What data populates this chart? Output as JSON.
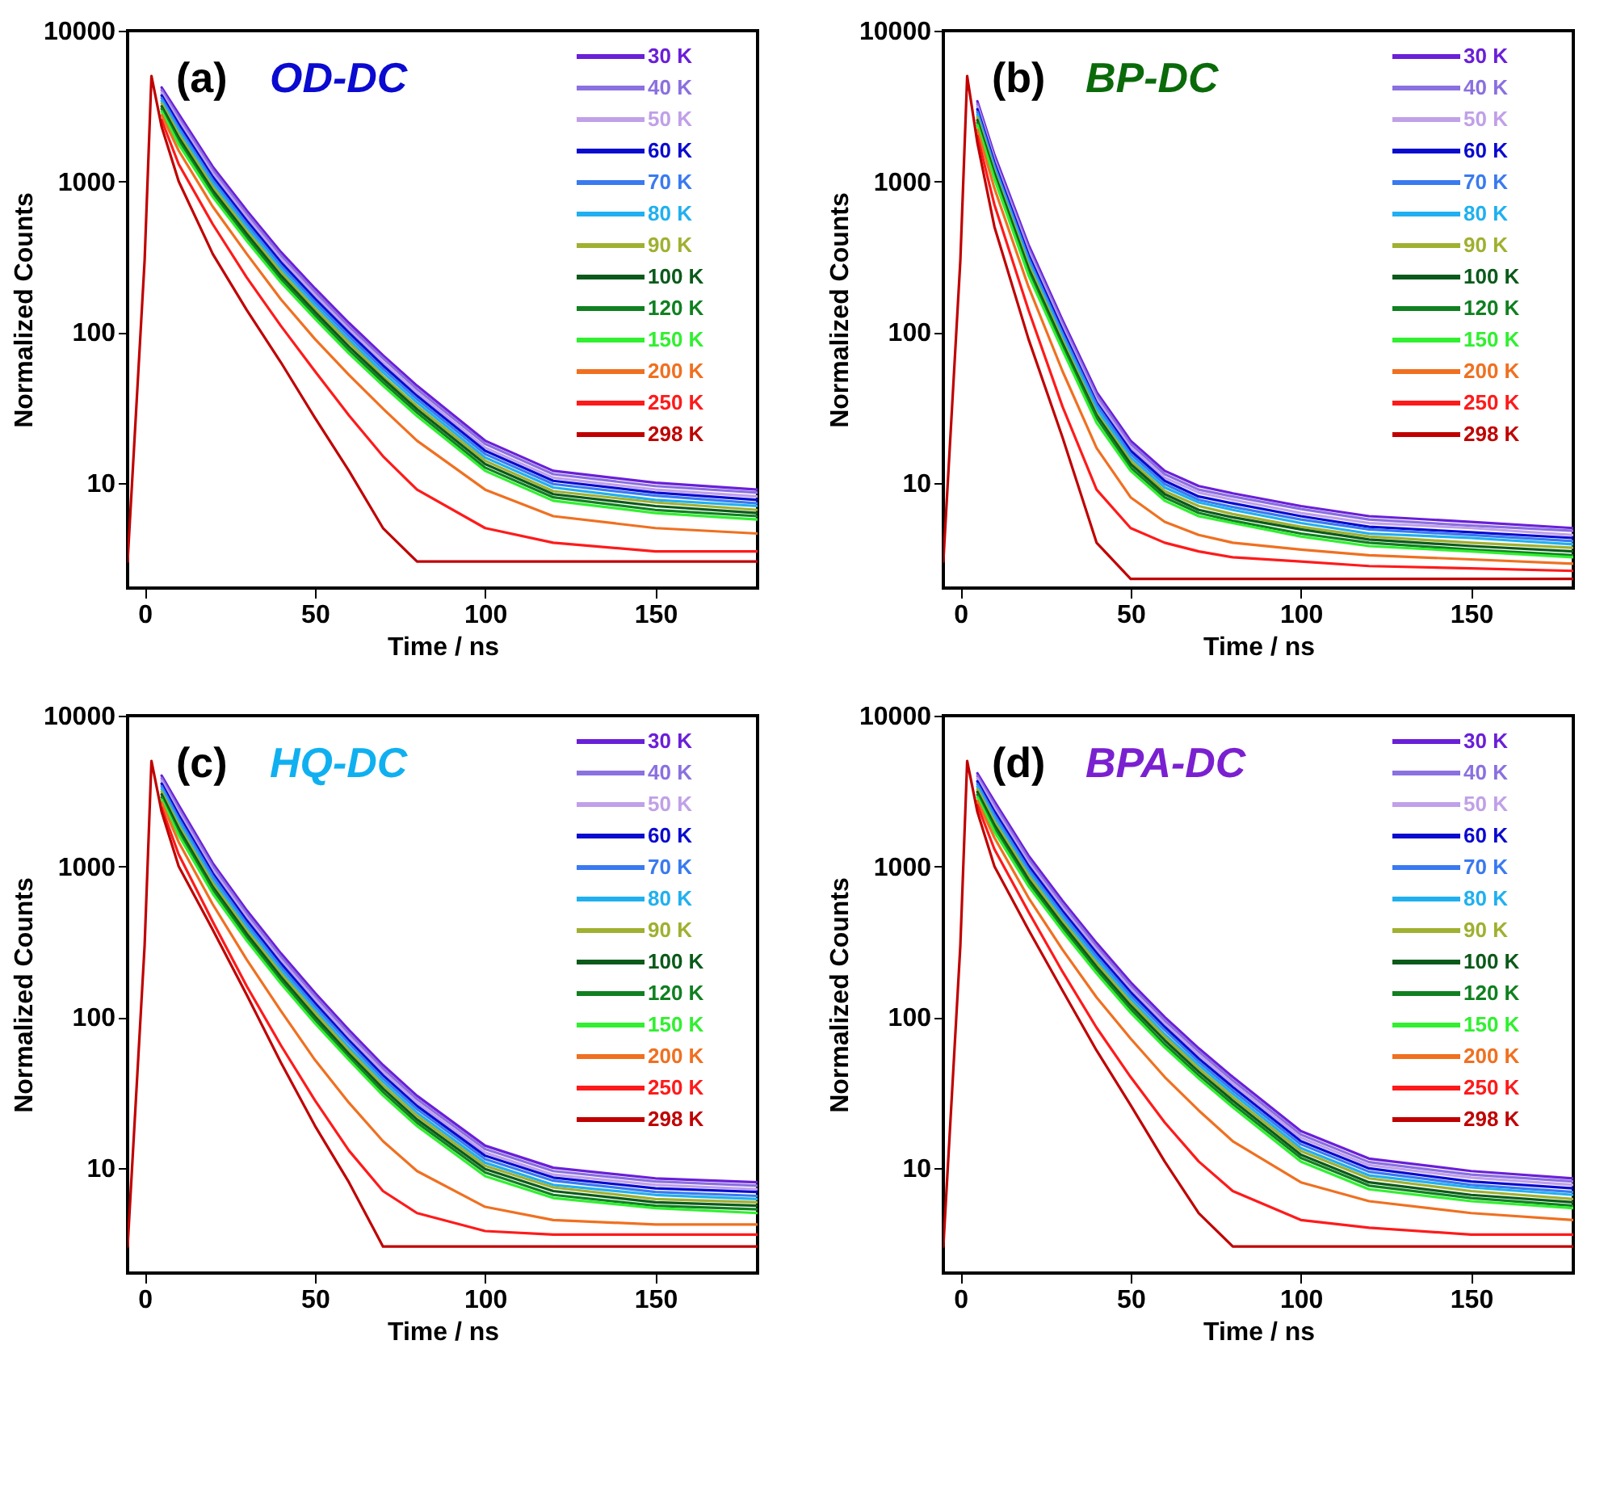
{
  "chart_data": [
    {
      "type": "line",
      "title": "OD-DC",
      "annotations": [
        "(a)"
      ],
      "xlabel": "Time / ns",
      "ylabel": "Normalized Counts",
      "log": true,
      "legend": "top right",
      "xlim": [
        -5,
        180
      ],
      "ylim": [
        2,
        10000
      ],
      "xticks": [
        0,
        50,
        100,
        150
      ],
      "yticks": [
        10,
        100,
        1000,
        10000
      ],
      "x": [
        -5,
        0,
        2,
        5,
        10,
        20,
        30,
        40,
        50,
        60,
        70,
        80,
        100,
        120,
        150,
        180
      ],
      "series": [
        {
          "name": "30 K",
          "color": "#6a1fd8",
          "values": [
            null,
            null,
            null,
            4200,
            2800,
            1250,
            640,
            340,
            195,
            115,
            70,
            44,
            19,
            12,
            10,
            9
          ]
        },
        {
          "name": "40 K",
          "color": "#8a70e0",
          "values": [
            null,
            null,
            null,
            4030,
            2660,
            1190,
            608,
            323,
            185,
            109,
            67,
            41.8,
            18.1,
            11.4,
            9.5,
            8.6
          ]
        },
        {
          "name": "50 K",
          "color": "#c0a0e8",
          "values": [
            null,
            null,
            null,
            3870,
            2530,
            1130,
            578,
            307,
            176,
            104,
            63,
            39.7,
            17.1,
            10.8,
            9.0,
            8.1
          ]
        },
        {
          "name": "60 K",
          "color": "#0a0ad0",
          "values": [
            null,
            null,
            null,
            3720,
            2400,
            1070,
            548,
            291,
            167,
            99,
            60,
            37.7,
            16.3,
            10.3,
            8.6,
            7.7
          ]
        },
        {
          "name": "70 K",
          "color": "#3a7af0",
          "values": [
            null,
            null,
            null,
            3570,
            2280,
            1020,
            522,
            277,
            159,
            94,
            57,
            35.9,
            15.5,
            9.8,
            8.2,
            7.3
          ]
        },
        {
          "name": "80 K",
          "color": "#20b0f0",
          "values": [
            null,
            null,
            null,
            3420,
            2170,
            970,
            495,
            263,
            151,
            89,
            54,
            34.1,
            14.7,
            9.3,
            7.7,
            7.0
          ]
        },
        {
          "name": "90 K",
          "color": "#a0b030",
          "values": [
            null,
            null,
            null,
            3290,
            2060,
            920,
            470,
            250,
            143,
            85,
            51,
            32.3,
            14.0,
            8.8,
            7.4,
            6.6
          ]
        },
        {
          "name": "100 K",
          "color": "#0a5a1a",
          "values": [
            null,
            null,
            null,
            3150,
            1950,
            870,
            447,
            237,
            136,
            80,
            48.9,
            30.7,
            13.3,
            8.4,
            7.0,
            6.3
          ]
        },
        {
          "name": "120 K",
          "color": "#108020",
          "values": [
            null,
            null,
            null,
            3030,
            1860,
            830,
            424,
            225,
            129,
            76,
            46.4,
            29.2,
            12.6,
            8.0,
            6.6,
            6.0
          ]
        },
        {
          "name": "150 K",
          "color": "#30f030",
          "values": [
            null,
            null,
            null,
            2910,
            1760,
            790,
            403,
            214,
            123,
            72,
            44.1,
            27.7,
            12.0,
            7.6,
            6.3,
            5.7
          ]
        },
        {
          "name": "200 K",
          "color": "#f07020",
          "values": [
            null,
            null,
            null,
            2750,
            1600,
            680,
            330,
            165,
            90,
            52,
            31,
            19,
            9,
            6,
            5,
            4.6
          ]
        },
        {
          "name": "250 K",
          "color": "#ff1a1a",
          "values": [
            null,
            null,
            null,
            2550,
            1300,
            520,
            230,
            110,
            55,
            28,
            15,
            9,
            5,
            4,
            3.5,
            3.5
          ]
        },
        {
          "name": "298 K",
          "color": "#c00000",
          "values": [
            3,
            300,
            5000,
            2300,
            1000,
            330,
            140,
            63,
            27,
            12,
            5,
            3,
            3,
            3,
            3,
            3
          ]
        }
      ]
    },
    {
      "type": "line",
      "title": "BP-DC",
      "annotations": [
        "(b)"
      ],
      "xlabel": "Time / ns",
      "ylabel": "Normalized Counts",
      "log": true,
      "legend": "top right",
      "xlim": [
        -5,
        180
      ],
      "ylim": [
        2,
        10000
      ],
      "xticks": [
        0,
        50,
        100,
        150
      ],
      "yticks": [
        10,
        100,
        1000,
        10000
      ],
      "x": [
        -5,
        0,
        2,
        5,
        10,
        20,
        30,
        40,
        50,
        60,
        70,
        80,
        100,
        120,
        150,
        180
      ],
      "series": [
        {
          "name": "30 K",
          "color": "#6a1fd8",
          "values": [
            null,
            null,
            null,
            3400,
            1500,
            380,
            120,
            40,
            19,
            12,
            9.5,
            8.5,
            7,
            6,
            5.5,
            5
          ]
        },
        {
          "name": "40 K",
          "color": "#8a70e0",
          "values": [
            null,
            null,
            null,
            3260,
            1430,
            361,
            114,
            38,
            18.1,
            11.4,
            9.0,
            8.1,
            6.7,
            5.7,
            5.2,
            4.8
          ]
        },
        {
          "name": "50 K",
          "color": "#c0a0e8",
          "values": [
            null,
            null,
            null,
            3130,
            1380,
            343,
            108,
            36,
            17.1,
            10.8,
            8.6,
            7.7,
            6.3,
            5.4,
            5.0,
            4.5
          ]
        },
        {
          "name": "60 K",
          "color": "#0a0ad0",
          "values": [
            null,
            null,
            null,
            3010,
            1330,
            326,
            103,
            34,
            16.3,
            10.3,
            8.1,
            7.3,
            6.0,
            5.1,
            4.7,
            4.3
          ]
        },
        {
          "name": "70 K",
          "color": "#3a7af0",
          "values": [
            null,
            null,
            null,
            2890,
            1270,
            310,
            98,
            33,
            15.5,
            9.8,
            7.7,
            6.9,
            5.7,
            4.9,
            4.5,
            4.1
          ]
        },
        {
          "name": "80 K",
          "color": "#20b0f0",
          "values": [
            null,
            null,
            null,
            2770,
            1220,
            294,
            93,
            31,
            14.7,
            9.3,
            7.4,
            6.6,
            5.4,
            4.6,
            4.3,
            3.9
          ]
        },
        {
          "name": "90 K",
          "color": "#a0b030",
          "values": [
            null,
            null,
            null,
            2660,
            1170,
            279,
            88,
            29,
            14.0,
            8.8,
            7.0,
            6.2,
            5.1,
            4.4,
            4.0,
            3.7
          ]
        },
        {
          "name": "100 K",
          "color": "#0a5a1a",
          "values": [
            null,
            null,
            null,
            2550,
            1130,
            265,
            84,
            28,
            13.3,
            8.4,
            6.6,
            5.9,
            4.9,
            4.2,
            3.8,
            3.5
          ]
        },
        {
          "name": "120 K",
          "color": "#108020",
          "values": [
            null,
            null,
            null,
            2450,
            1080,
            252,
            80,
            27,
            12.6,
            8.0,
            6.3,
            5.6,
            4.6,
            4.0,
            3.6,
            3.3
          ]
        },
        {
          "name": "150 K",
          "color": "#30f030",
          "values": [
            null,
            null,
            null,
            2360,
            1040,
            239,
            76,
            25,
            12.0,
            7.6,
            6.0,
            5.4,
            4.4,
            3.8,
            3.5,
            3.2
          ]
        },
        {
          "name": "200 K",
          "color": "#f07020",
          "values": [
            null,
            null,
            null,
            2200,
            900,
            200,
            55,
            17,
            8,
            5.5,
            4.5,
            4,
            3.6,
            3.3,
            3.1,
            2.9
          ]
        },
        {
          "name": "250 K",
          "color": "#ff1a1a",
          "values": [
            null,
            null,
            null,
            2000,
            700,
            140,
            32,
            9,
            5,
            4,
            3.5,
            3.2,
            3,
            2.8,
            2.7,
            2.6
          ]
        },
        {
          "name": "298 K",
          "color": "#c00000",
          "values": [
            3,
            300,
            5000,
            1800,
            500,
            90,
            20,
            4,
            2.3,
            2.3,
            2.3,
            2.3,
            2.3,
            2.3,
            2.3,
            2.3
          ]
        }
      ]
    },
    {
      "type": "line",
      "title": "HQ-DC",
      "annotations": [
        "(c)"
      ],
      "xlabel": "Time / ns",
      "ylabel": "Normalized Counts",
      "log": true,
      "legend": "top right",
      "xlim": [
        -5,
        180
      ],
      "ylim": [
        2,
        10000
      ],
      "xticks": [
        0,
        50,
        100,
        150
      ],
      "yticks": [
        10,
        100,
        1000,
        10000
      ],
      "x": [
        -5,
        0,
        2,
        5,
        10,
        20,
        30,
        40,
        50,
        60,
        70,
        80,
        100,
        120,
        150,
        180
      ],
      "series": [
        {
          "name": "30 K",
          "color": "#6a1fd8",
          "values": [
            null,
            null,
            null,
            4000,
            2550,
            1050,
            510,
            265,
            145,
            82,
            48,
            30,
            14,
            10,
            8.5,
            8
          ]
        },
        {
          "name": "40 K",
          "color": "#8a70e0",
          "values": [
            null,
            null,
            null,
            3840,
            2420,
            1000,
            485,
            252,
            138,
            78,
            45.6,
            28.5,
            13.3,
            9.5,
            8.1,
            7.6
          ]
        },
        {
          "name": "50 K",
          "color": "#c0a0e8",
          "values": [
            null,
            null,
            null,
            3690,
            2300,
            950,
            460,
            239,
            131,
            74,
            43.3,
            27.1,
            12.6,
            9.0,
            7.7,
            7.2
          ]
        },
        {
          "name": "60 K",
          "color": "#0a0ad0",
          "values": [
            null,
            null,
            null,
            3540,
            2190,
            900,
            437,
            227,
            124,
            70,
            41.1,
            25.7,
            12.0,
            8.6,
            7.3,
            6.9
          ]
        },
        {
          "name": "70 K",
          "color": "#3a7af0",
          "values": [
            null,
            null,
            null,
            3400,
            2080,
            860,
            416,
            216,
            118,
            67,
            39.1,
            24.5,
            11.4,
            8.2,
            6.9,
            6.5
          ]
        },
        {
          "name": "80 K",
          "color": "#20b0f0",
          "values": [
            null,
            null,
            null,
            3260,
            1970,
            810,
            395,
            205,
            112,
            63,
            37.2,
            23.2,
            10.8,
            7.7,
            6.6,
            6.2
          ]
        },
        {
          "name": "90 K",
          "color": "#a0b030",
          "values": [
            null,
            null,
            null,
            3130,
            1870,
            770,
            375,
            195,
            107,
            60,
            35.3,
            22.1,
            10.3,
            7.4,
            6.2,
            5.9
          ]
        },
        {
          "name": "100 K",
          "color": "#0a5a1a",
          "values": [
            null,
            null,
            null,
            3000,
            1780,
            730,
            356,
            185,
            101,
            57,
            33.5,
            20.9,
            9.8,
            7.0,
            5.9,
            5.6
          ]
        },
        {
          "name": "120 K",
          "color": "#108020",
          "values": [
            null,
            null,
            null,
            2880,
            1690,
            700,
            338,
            176,
            96,
            54,
            31.8,
            19.9,
            9.3,
            6.6,
            5.6,
            5.3
          ]
        },
        {
          "name": "150 K",
          "color": "#30f030",
          "values": [
            null,
            null,
            null,
            2770,
            1610,
            660,
            321,
            167,
            91,
            52,
            30.2,
            18.9,
            8.8,
            6.3,
            5.4,
            5.0
          ]
        },
        {
          "name": "200 K",
          "color": "#f07020",
          "values": [
            null,
            null,
            null,
            2650,
            1450,
            560,
            240,
            110,
            52,
            27,
            15,
            9.5,
            5.5,
            4.5,
            4.2,
            4.2
          ]
        },
        {
          "name": "250 K",
          "color": "#ff1a1a",
          "values": [
            null,
            null,
            null,
            2450,
            1200,
            430,
            160,
            65,
            28,
            13,
            7,
            5,
            3.8,
            3.6,
            3.6,
            3.6
          ]
        },
        {
          "name": "298 K",
          "color": "#c00000",
          "values": [
            3,
            300,
            5000,
            2300,
            1000,
            380,
            140,
            50,
            19,
            8,
            3,
            3,
            3,
            3,
            3,
            3
          ]
        }
      ]
    },
    {
      "type": "line",
      "title": "BPA-DC",
      "annotations": [
        "(d)"
      ],
      "xlabel": "Time / ns",
      "ylabel": "Normalized Counts",
      "log": true,
      "legend": "top right",
      "xlim": [
        -5,
        180
      ],
      "ylim": [
        2,
        10000
      ],
      "xticks": [
        0,
        50,
        100,
        150
      ],
      "yticks": [
        10,
        100,
        1000,
        10000
      ],
      "x": [
        -5,
        0,
        2,
        5,
        10,
        20,
        30,
        40,
        50,
        60,
        70,
        80,
        100,
        120,
        150,
        180
      ],
      "series": [
        {
          "name": "30 K",
          "color": "#6a1fd8",
          "values": [
            null,
            null,
            null,
            4150,
            2700,
            1180,
            590,
            310,
            170,
            100,
            62,
            40,
            17.5,
            11.5,
            9.5,
            8.5
          ]
        },
        {
          "name": "40 K",
          "color": "#8a70e0",
          "values": [
            null,
            null,
            null,
            3980,
            2570,
            1120,
            561,
            295,
            162,
            95,
            59,
            38,
            16.6,
            10.9,
            9.0,
            8.1
          ]
        },
        {
          "name": "50 K",
          "color": "#c0a0e8",
          "values": [
            null,
            null,
            null,
            3830,
            2440,
            1060,
            532,
            280,
            153,
            90,
            56,
            36.1,
            15.8,
            10.4,
            8.6,
            7.7
          ]
        },
        {
          "name": "60 K",
          "color": "#0a0ad0",
          "values": [
            null,
            null,
            null,
            3670,
            2310,
            1010,
            506,
            266,
            146,
            86,
            53,
            34.3,
            15.0,
            9.9,
            8.1,
            7.3
          ]
        },
        {
          "name": "70 K",
          "color": "#3a7af0",
          "values": [
            null,
            null,
            null,
            3520,
            2200,
            960,
            481,
            253,
            139,
            82,
            50.5,
            32.6,
            14.3,
            9.4,
            7.7,
            6.9
          ]
        },
        {
          "name": "80 K",
          "color": "#20b0f0",
          "values": [
            null,
            null,
            null,
            3380,
            2090,
            910,
            457,
            240,
            132,
            77,
            48.0,
            31.0,
            13.5,
            8.9,
            7.4,
            6.6
          ]
        },
        {
          "name": "90 K",
          "color": "#a0b030",
          "values": [
            null,
            null,
            null,
            3250,
            1980,
            870,
            434,
            228,
            125,
            74,
            45.6,
            29.4,
            12.9,
            8.5,
            7.0,
            6.2
          ]
        },
        {
          "name": "100 K",
          "color": "#0a5a1a",
          "values": [
            null,
            null,
            null,
            3120,
            1880,
            820,
            412,
            216,
            119,
            70,
            43.3,
            27.9,
            12.2,
            8.0,
            6.6,
            5.9
          ]
        },
        {
          "name": "120 K",
          "color": "#108020",
          "values": [
            null,
            null,
            null,
            2990,
            1790,
            780,
            391,
            206,
            113,
            66,
            41.1,
            26.5,
            11.6,
            7.6,
            6.3,
            5.6
          ]
        },
        {
          "name": "150 K",
          "color": "#30f030",
          "values": [
            null,
            null,
            null,
            2880,
            1700,
            740,
            372,
            195,
            107,
            63,
            39.1,
            25.2,
            11.0,
            7.2,
            6.0,
            5.4
          ]
        },
        {
          "name": "200 K",
          "color": "#f07020",
          "values": [
            null,
            null,
            null,
            2720,
            1550,
            620,
            280,
            135,
            72,
            40,
            24,
            15,
            8,
            6,
            5,
            4.5
          ]
        },
        {
          "name": "250 K",
          "color": "#ff1a1a",
          "values": [
            null,
            null,
            null,
            2550,
            1300,
            500,
            200,
            85,
            40,
            20,
            11,
            7,
            4.5,
            4,
            3.6,
            3.6
          ]
        },
        {
          "name": "298 K",
          "color": "#c00000",
          "values": [
            3,
            300,
            5000,
            2300,
            1000,
            380,
            150,
            60,
            26,
            11,
            5,
            3,
            3,
            3,
            3,
            3
          ]
        }
      ]
    }
  ]
}
